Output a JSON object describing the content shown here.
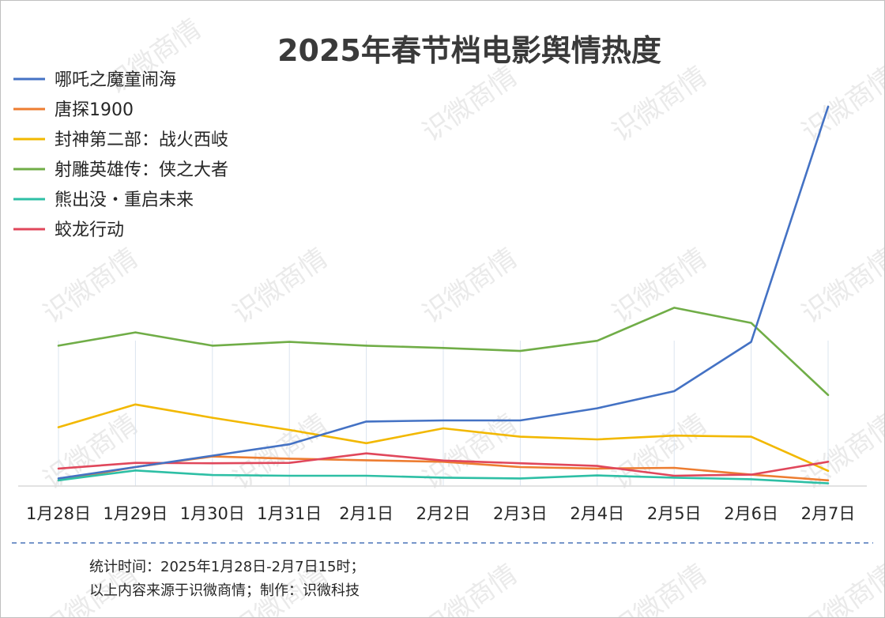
{
  "chart_data": {
    "type": "line",
    "title": "2025年春节档电影舆情热度",
    "xlabel": "",
    "ylabel": "",
    "categories": [
      "1月28日",
      "1月29日",
      "1月30日",
      "1月31日",
      "2月1日",
      "2月2日",
      "2月3日",
      "2月4日",
      "2月5日",
      "2月6日",
      "2月7日"
    ],
    "ylim": [
      0,
      100
    ],
    "grid": "vertical",
    "legend": "top-left",
    "series": [
      {
        "name": "哪吒之魔童闹海",
        "color": "#4472C4",
        "values": [
          2,
          5,
          8,
          11,
          17,
          17.3,
          17.3,
          20.5,
          25,
          38,
          100
        ]
      },
      {
        "name": "唐探1900",
        "color": "#ED7D31",
        "values": [
          1.5,
          5,
          7.8,
          7.2,
          6.8,
          6.4,
          5,
          4.6,
          4.8,
          3,
          1.5
        ]
      },
      {
        "name": "封神第二部：战火西岐",
        "color": "#F2B800",
        "values": [
          15.5,
          21.5,
          18,
          14.8,
          11.3,
          15.2,
          13,
          12.3,
          13.3,
          13,
          4
        ]
      },
      {
        "name": "射雕英雄传：侠之大者",
        "color": "#70AD47",
        "values": [
          37,
          40.5,
          37,
          38,
          37,
          36.4,
          35.6,
          38.3,
          47,
          43,
          24
        ]
      },
      {
        "name": "熊出没・重启未来",
        "color": "#2EBFA5",
        "values": [
          1.5,
          4.1,
          2.9,
          2.7,
          2.7,
          2.2,
          2,
          2.8,
          2.2,
          1.8,
          0.7
        ]
      },
      {
        "name": "蛟龙行动",
        "color": "#E0475B",
        "values": [
          4.6,
          6.1,
          6,
          6.1,
          8.6,
          6.7,
          6,
          5.3,
          2.7,
          3,
          6.4
        ]
      }
    ]
  },
  "footer": {
    "line1": "统计时间：2025年1月28日-2月7日15时；",
    "line2": "以上内容来源于识微商情；制作：识微科技"
  },
  "watermark": "识微商情"
}
